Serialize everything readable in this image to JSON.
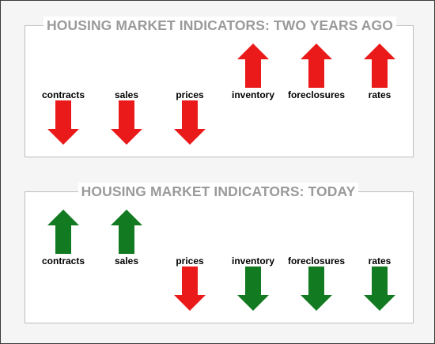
{
  "colors": {
    "up_red": "#ea1a1a",
    "down_red": "#ea1a1a",
    "down_green": "#127a21",
    "up_green": "#127a21",
    "title_gray": "#9a9a9a"
  },
  "panels": [
    {
      "title": "HOUSING MARKET INDICATORS:  TWO YEARS AGO",
      "indicators": [
        {
          "label": "contracts",
          "direction": "down",
          "color": "red",
          "arrow_icon": "down-arrow-icon"
        },
        {
          "label": "sales",
          "direction": "down",
          "color": "red",
          "arrow_icon": "down-arrow-icon"
        },
        {
          "label": "prices",
          "direction": "down",
          "color": "red",
          "arrow_icon": "down-arrow-icon"
        },
        {
          "label": "inventory",
          "direction": "up",
          "color": "red",
          "arrow_icon": "up-arrow-icon"
        },
        {
          "label": "foreclosures",
          "direction": "up",
          "color": "red",
          "arrow_icon": "up-arrow-icon"
        },
        {
          "label": "rates",
          "direction": "up",
          "color": "red",
          "arrow_icon": "up-arrow-icon"
        }
      ]
    },
    {
      "title": "HOUSING MARKET INDICATORS:  TODAY",
      "indicators": [
        {
          "label": "contracts",
          "direction": "up",
          "color": "green",
          "arrow_icon": "up-arrow-icon"
        },
        {
          "label": "sales",
          "direction": "up",
          "color": "green",
          "arrow_icon": "up-arrow-icon"
        },
        {
          "label": "prices",
          "direction": "down",
          "color": "red",
          "arrow_icon": "down-arrow-icon"
        },
        {
          "label": "inventory",
          "direction": "down",
          "color": "green",
          "arrow_icon": "down-arrow-icon"
        },
        {
          "label": "foreclosures",
          "direction": "down",
          "color": "green",
          "arrow_icon": "down-arrow-icon"
        },
        {
          "label": "rates",
          "direction": "down",
          "color": "green",
          "arrow_icon": "down-arrow-icon"
        }
      ]
    }
  ]
}
